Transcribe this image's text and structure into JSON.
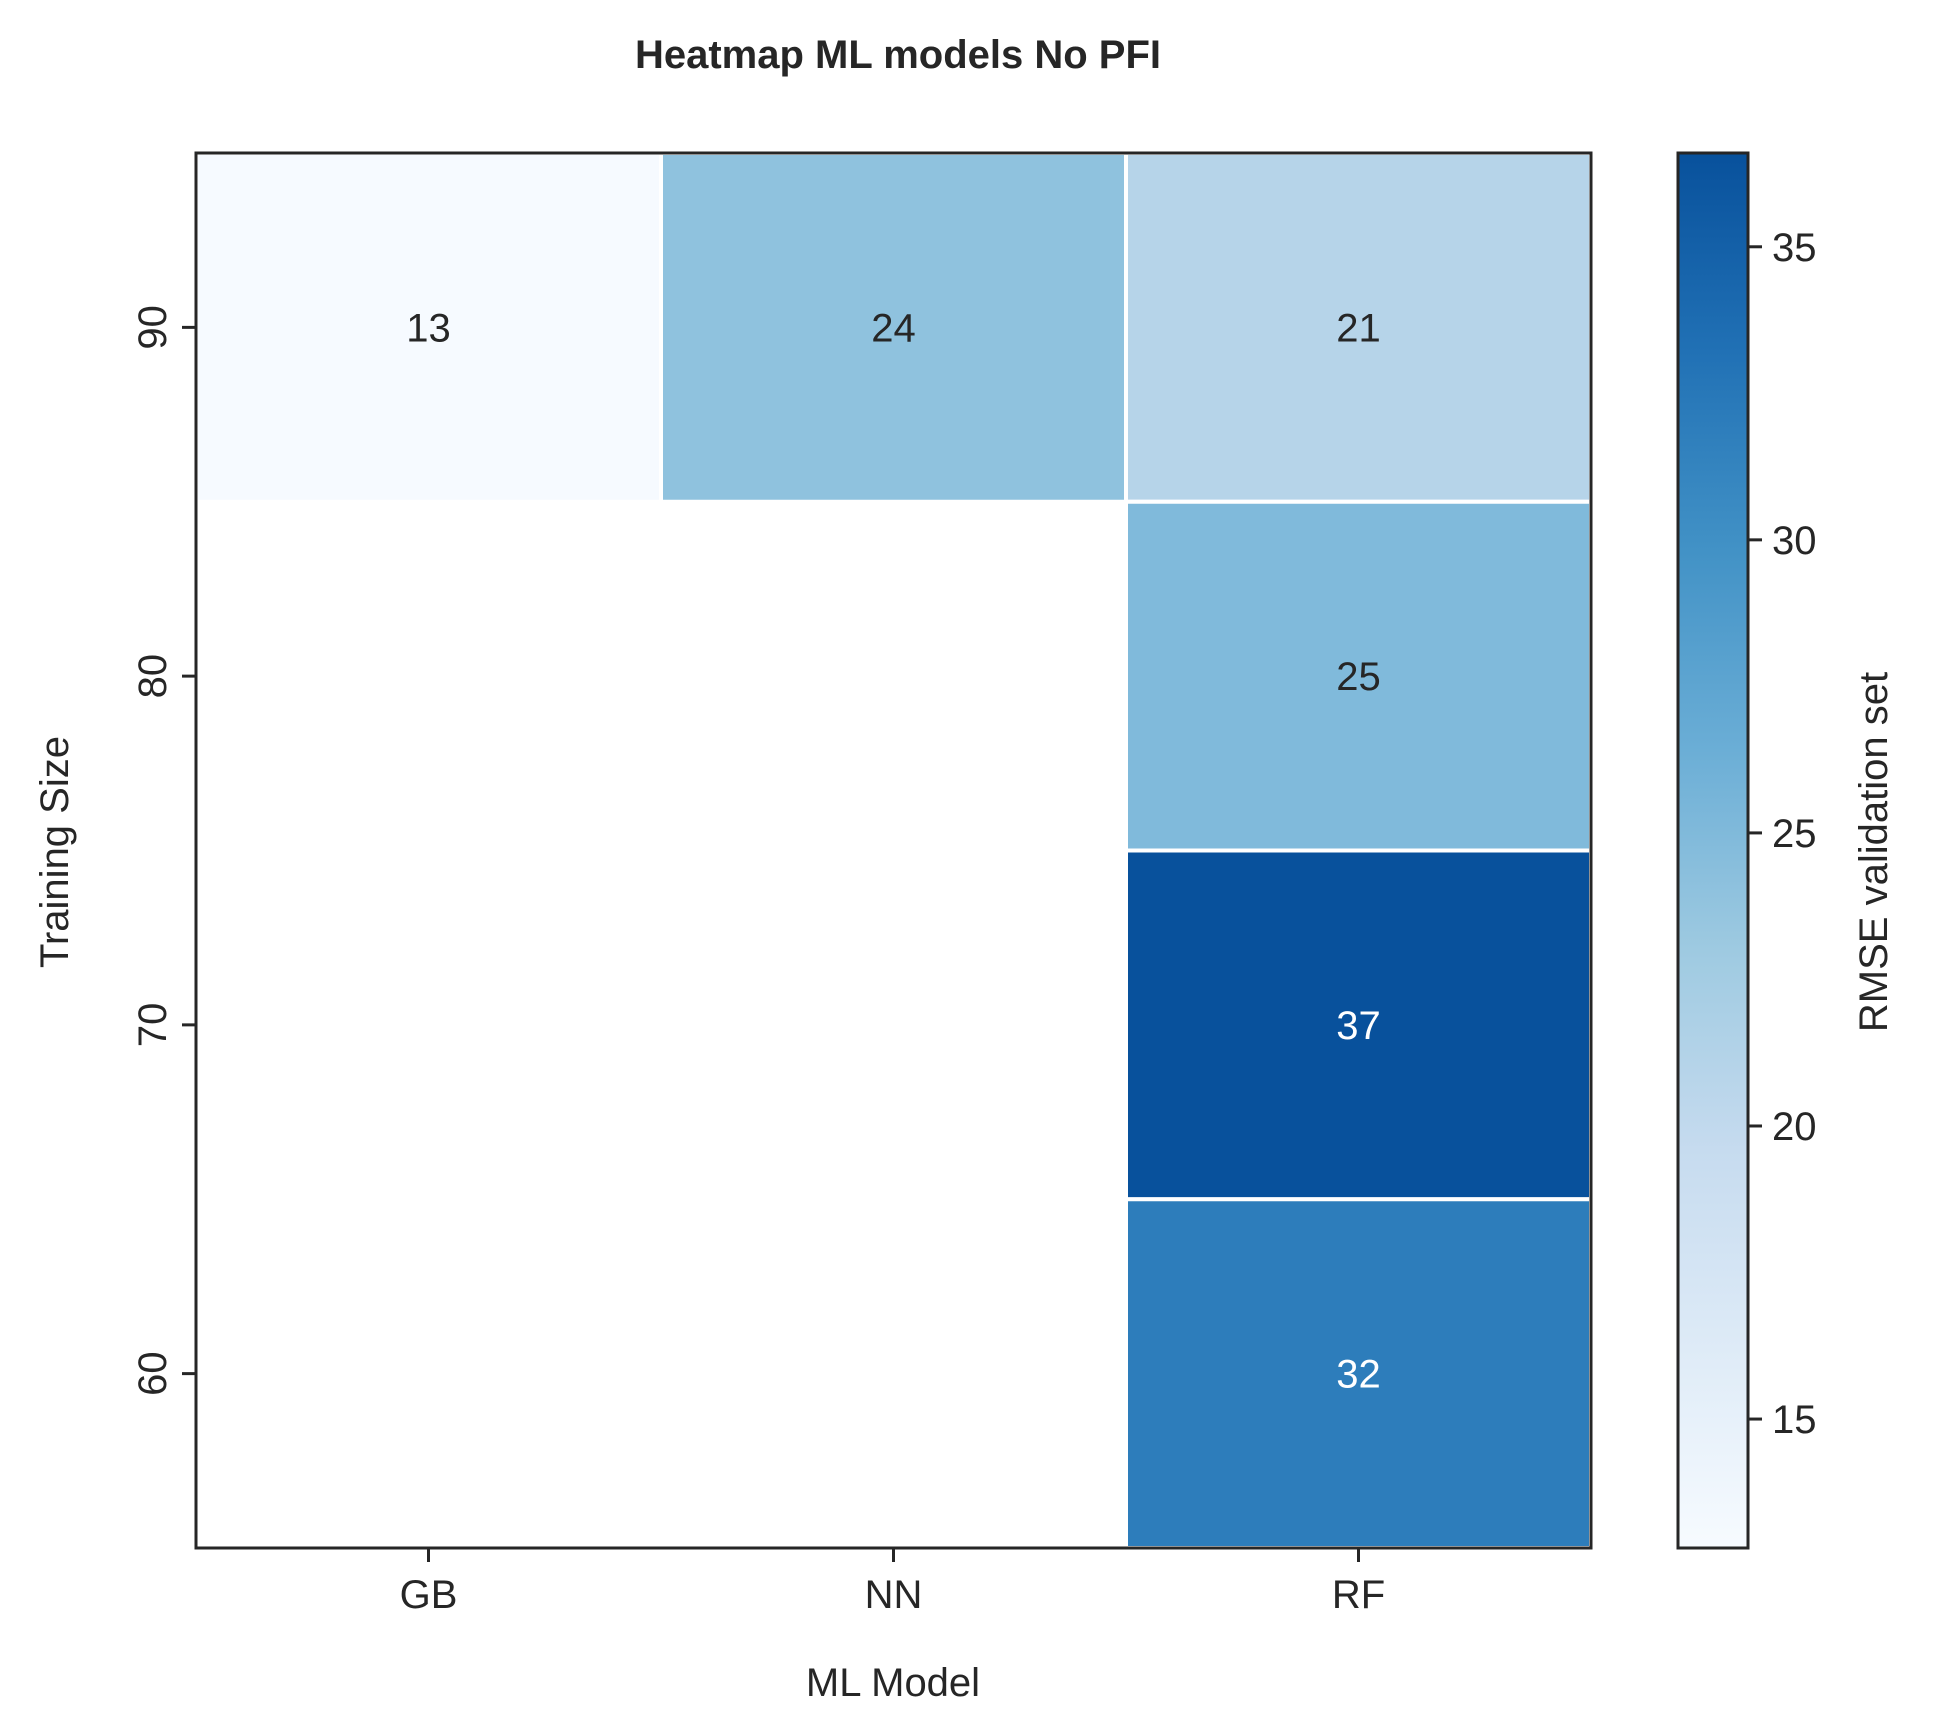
{
  "chart_data": {
    "type": "heatmap",
    "title": "Heatmap ML models No PFI",
    "xlabel": "ML Model",
    "ylabel": "Training Size",
    "x_categories": [
      "GB",
      "NN",
      "RF"
    ],
    "y_categories": [
      "90",
      "80",
      "70",
      "60"
    ],
    "cells": [
      {
        "x": "GB",
        "y": "90",
        "value": 13,
        "label": "13"
      },
      {
        "x": "NN",
        "y": "90",
        "value": 24,
        "label": "24"
      },
      {
        "x": "RF",
        "y": "90",
        "value": 21,
        "label": "21"
      },
      {
        "x": "RF",
        "y": "80",
        "value": 25,
        "label": "25"
      },
      {
        "x": "RF",
        "y": "70",
        "value": 37,
        "label": "37"
      },
      {
        "x": "RF",
        "y": "60",
        "value": 32,
        "label": "32"
      }
    ],
    "colorbar": {
      "label": "RMSE validation set",
      "range": [
        12.8,
        36.6
      ],
      "ticks": [
        "15",
        "20",
        "25",
        "30",
        "35"
      ],
      "colormap": [
        "#f7fbff",
        "#deebf7",
        "#c6dbef",
        "#9ecae1",
        "#6baed6",
        "#4292c6",
        "#2171b5",
        "#08519c"
      ]
    },
    "colors": {
      "light_text": "#ffffff",
      "dark_text": "#262626",
      "axis": "#262626"
    }
  }
}
